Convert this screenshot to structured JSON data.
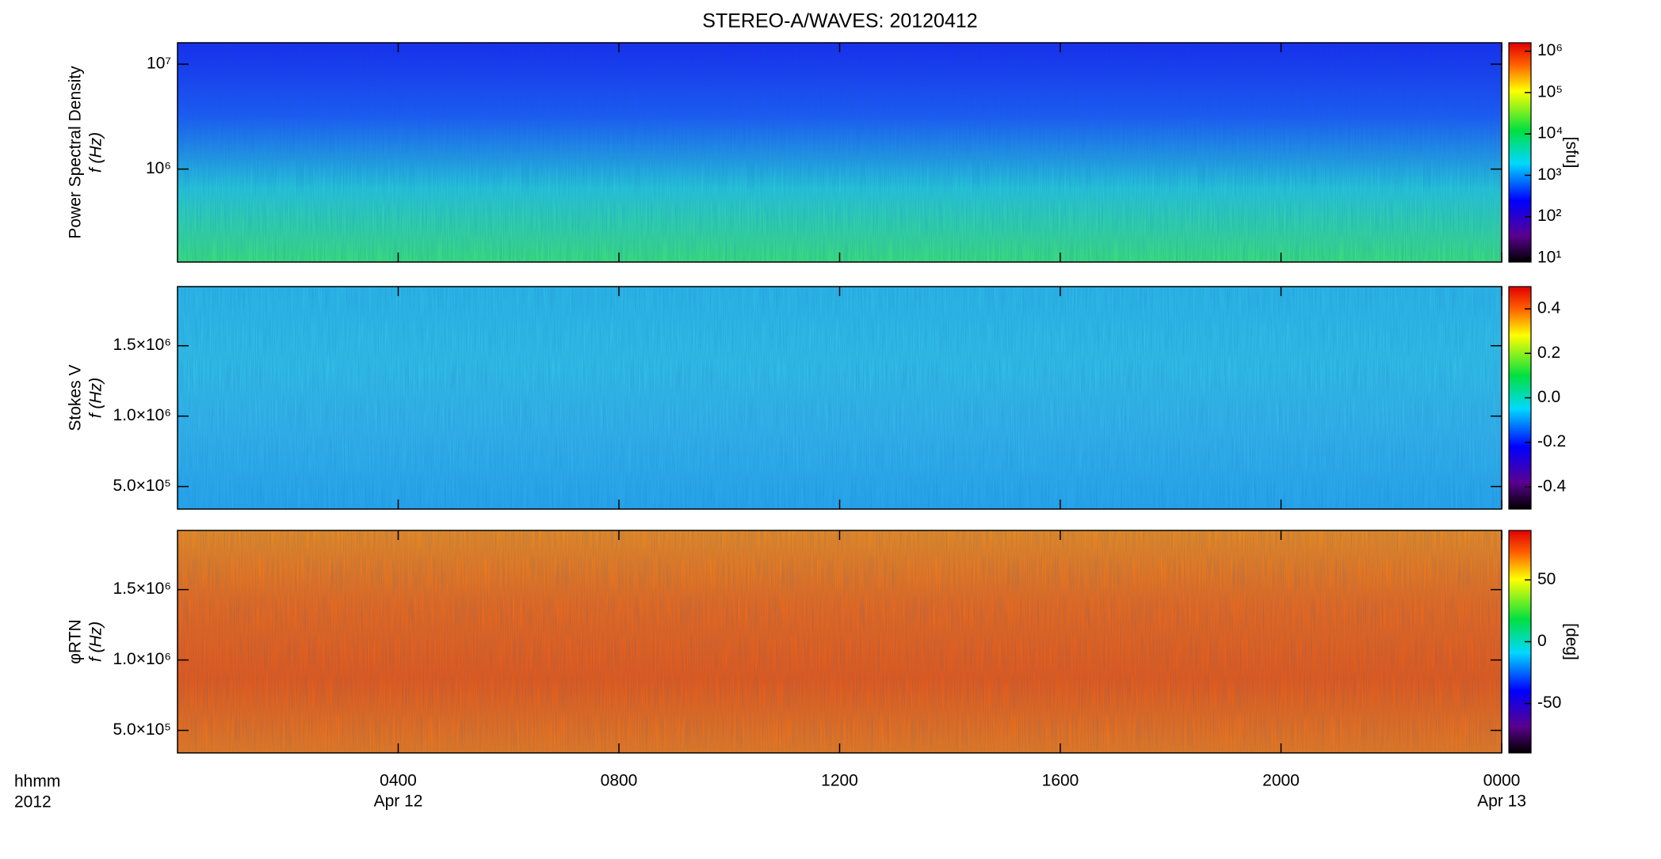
{
  "title": "STEREO-A/WAVES: 20120412",
  "x_axis": {
    "label": [
      "hhmm",
      "2012"
    ],
    "xlim": [
      0,
      24
    ],
    "xticks": [
      {
        "value": 4,
        "label": "0400"
      },
      {
        "value": 8,
        "label": "0800"
      },
      {
        "value": 12,
        "label": "1200"
      },
      {
        "value": 16,
        "label": "1600"
      },
      {
        "value": 20,
        "label": "2000"
      },
      {
        "value": 24,
        "label": "0000"
      }
    ],
    "date_labels": [
      {
        "value": 4,
        "label": "Apr 12"
      },
      {
        "value": 24,
        "label": "Apr 13"
      }
    ]
  },
  "chart_data": [
    {
      "type": "spectrogram",
      "ylabel": [
        "Power Spectral Density",
        "f (Hz)"
      ],
      "ylog": true,
      "ylim": [
        130000,
        16000000
      ],
      "yticks": [
        {
          "value": 1000000,
          "label": "10⁶"
        },
        {
          "value": 10000000,
          "label": "10⁷"
        }
      ],
      "colorbar": {
        "label": "[sfu]",
        "log": true,
        "lim": [
          8,
          1600000
        ],
        "ticks": [
          {
            "value": 10,
            "label": "10¹"
          },
          {
            "value": 100,
            "label": "10²"
          },
          {
            "value": 1000,
            "label": "10³"
          },
          {
            "value": 10000,
            "label": "10⁴"
          },
          {
            "value": 100000,
            "label": "10⁵"
          },
          {
            "value": 1000000,
            "label": "10⁶"
          }
        ]
      },
      "background": [
        "#1a2cf0",
        "#1f5cf5",
        "#29c8d8",
        "#3ee07a"
      ]
    },
    {
      "type": "spectrogram",
      "ylabel": [
        "Stokes V",
        "f (Hz)"
      ],
      "ylog": false,
      "ylim": [
        340000,
        1920000
      ],
      "yticks": [
        {
          "value": 500000,
          "label": "5.0×10⁵"
        },
        {
          "value": 1000000,
          "label": "1.0×10⁶"
        },
        {
          "value": 1500000,
          "label": "1.5×10⁶"
        }
      ],
      "colorbar": {
        "label": null,
        "log": false,
        "lim": [
          -0.5,
          0.5
        ],
        "ticks": [
          {
            "value": -0.4,
            "label": "-0.4"
          },
          {
            "value": -0.2,
            "label": "-0.2"
          },
          {
            "value": 0,
            "label": "0.0"
          },
          {
            "value": 0.2,
            "label": "0.2"
          },
          {
            "value": 0.4,
            "label": "0.4"
          }
        ]
      },
      "background": [
        "#2fb8e8",
        "#34c0e6",
        "#35b4ea",
        "#2aa8ec"
      ]
    },
    {
      "type": "spectrogram",
      "ylabel": [
        "φRTN",
        "f (Hz)"
      ],
      "ylog": false,
      "ylim": [
        340000,
        1920000
      ],
      "yticks": [
        {
          "value": 500000,
          "label": "5.0×10⁵"
        },
        {
          "value": 1000000,
          "label": "1.0×10⁶"
        },
        {
          "value": 1500000,
          "label": "1.5×10⁶"
        }
      ],
      "colorbar": {
        "label": "[deg]",
        "log": false,
        "lim": [
          -90,
          90
        ],
        "ticks": [
          -50,
          0,
          50
        ]
      },
      "background": [
        "#f08a1c",
        "#f06a18",
        "#ee5a14",
        "#f07a1a"
      ]
    }
  ]
}
